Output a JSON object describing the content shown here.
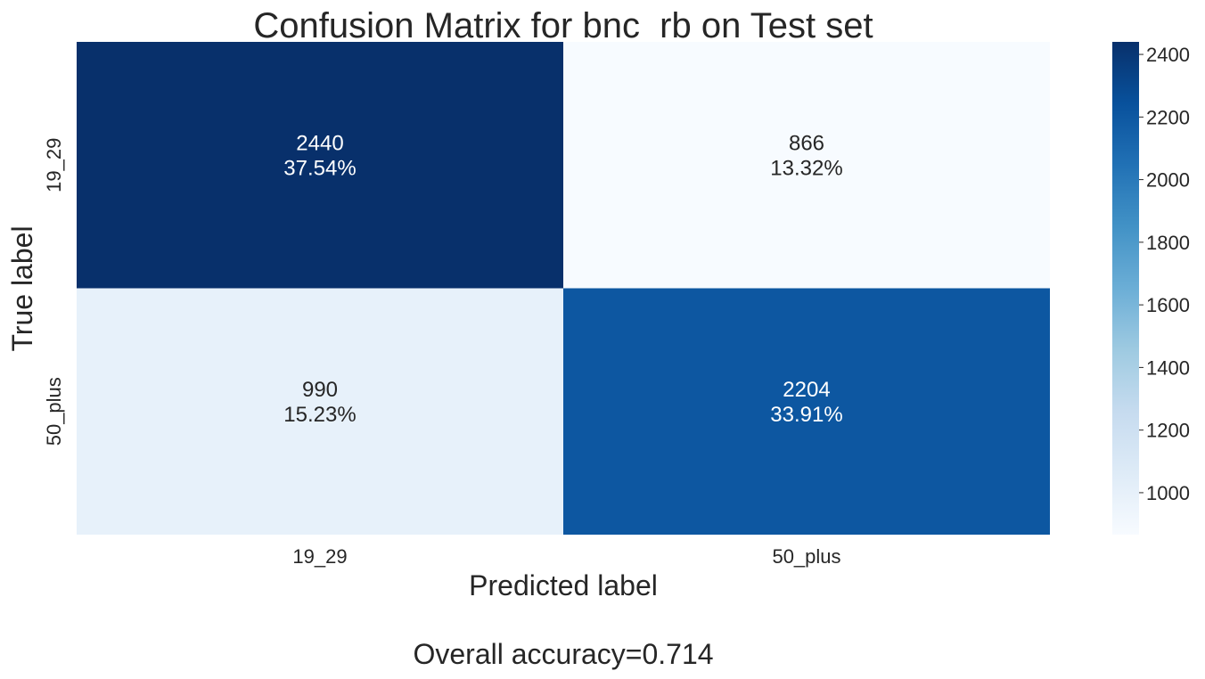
{
  "chart_data": {
    "type": "heatmap",
    "title": "Confusion Matrix for bnc_rb on Test set",
    "xlabel": "Predicted label",
    "ylabel": "True label",
    "x_categories": [
      "19_29",
      "50_plus"
    ],
    "y_categories": [
      "19_29",
      "50_plus"
    ],
    "values": [
      [
        2440,
        866
      ],
      [
        990,
        2204
      ]
    ],
    "percent_labels": [
      [
        "37.54%",
        "13.32%"
      ],
      [
        "15.23%",
        "33.91%"
      ]
    ],
    "colormap": "Blues",
    "colorbar": {
      "range": [
        866,
        2440
      ],
      "ticks": [
        1000,
        1200,
        1400,
        1600,
        1800,
        2000,
        2200,
        2400
      ]
    },
    "footer": "Overall accuracy=0.714"
  }
}
